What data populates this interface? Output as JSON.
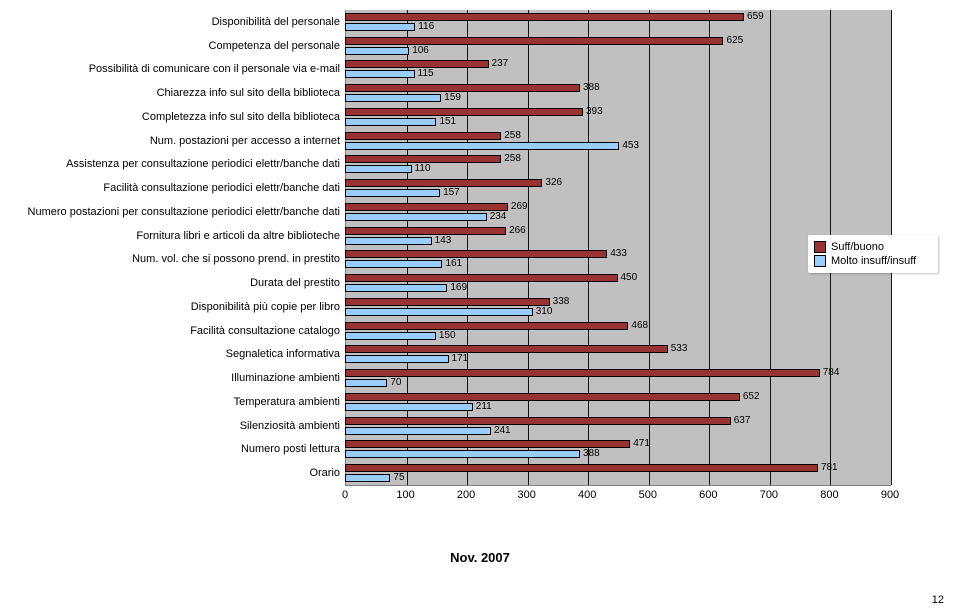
{
  "chart": {
    "type": "bar-horizontal-grouped",
    "x_axis": {
      "min": 0,
      "max": 900,
      "tick_step": 100,
      "ticks": [
        0,
        100,
        200,
        300,
        400,
        500,
        600,
        700,
        800,
        900
      ]
    },
    "gridline_color": "#000000",
    "plot_background": "#c0c0c0",
    "series": [
      {
        "key": "suff",
        "label": "Suff/buono",
        "color": "#993333"
      },
      {
        "key": "insuff",
        "label": "Molto insuff/insuff",
        "color": "#99ccff"
      }
    ],
    "categories": [
      "Disponibilità del personale",
      "Competenza del personale",
      "Possibilità di comunicare con il personale via e-mail",
      "Chiarezza info sul sito della biblioteca",
      "Completezza info sul sito della biblioteca",
      "Num. postazioni per accesso a internet",
      "Assistenza per consultazione periodici elettr/banche dati",
      "Facilità consultazione periodici elettr/banche dati",
      "Numero postazioni per consultazione periodici elettr/banche dati",
      "Fornitura libri e articoli da altre biblioteche",
      "Num. vol. che si possono prend. in prestito",
      "Durata del prestito",
      "Disponibilità più copie per libro",
      "Facilità consultazione catalogo",
      "Segnaletica informativa",
      "Illuminazione ambienti",
      "Temperatura ambienti",
      "Silenziosità ambienti",
      "Numero posti lettura",
      "Orario"
    ],
    "values": {
      "suff": [
        659,
        625,
        237,
        388,
        393,
        258,
        258,
        326,
        269,
        266,
        433,
        450,
        338,
        468,
        533,
        784,
        652,
        637,
        471,
        781
      ],
      "insuff": [
        116,
        106,
        115,
        159,
        151,
        453,
        110,
        157,
        234,
        143,
        161,
        169,
        310,
        150,
        171,
        70,
        211,
        241,
        388,
        75
      ]
    },
    "label_fontsize": 11,
    "value_fontsize": 10
  },
  "legend_title": null,
  "footer_date": "Nov. 2007",
  "page_number": "12"
}
